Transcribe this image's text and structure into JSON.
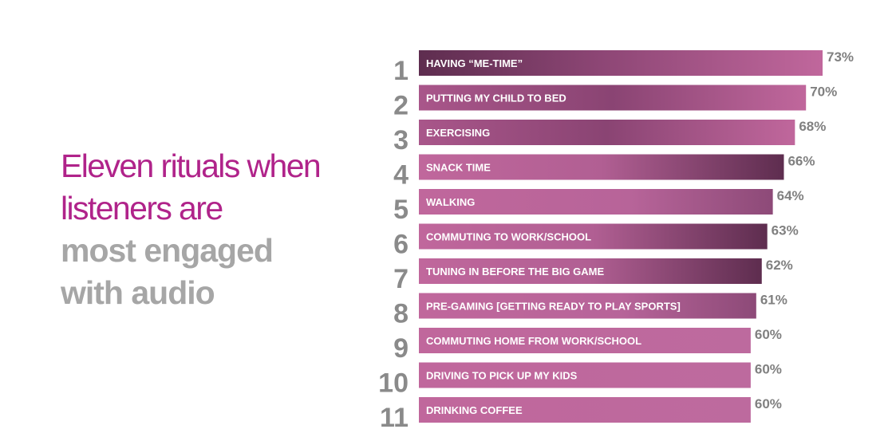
{
  "headline": {
    "line1": "Eleven rituals when",
    "line2": "listeners are",
    "line3": "most engaged",
    "line4": "with audio"
  },
  "colors": {
    "headline_accent": "#b0238a",
    "headline_gray": "#a6a6a6",
    "rank_gray": "#8a8a8a",
    "value_gray": "#808080",
    "bar_light": "#c0679c",
    "bar_dark": "#5e2d4f"
  },
  "chart_data": {
    "type": "bar",
    "orientation": "horizontal",
    "title": "",
    "xlabel": "",
    "ylabel": "",
    "xlim": [
      0,
      73
    ],
    "grid": false,
    "legend": "none",
    "ranks": [
      "1",
      "2",
      "3",
      "4",
      "5",
      "6",
      "7",
      "8",
      "9",
      "10",
      "11"
    ],
    "categories": [
      "HAVING “ME-TIME”",
      "PUTTING MY CHILD TO BED",
      "EXERCISING",
      "SNACK TIME",
      "WALKING",
      "COMMUTING TO WORK/SCHOOL",
      "TUNING IN BEFORE THE BIG GAME",
      "PRE-GAMING [GETTING READY TO PLAY SPORTS]",
      "COMMUTING HOME FROM WORK/SCHOOL",
      "DRIVING TO PICK UP MY KIDS",
      "DRINKING COFFEE"
    ],
    "values": [
      73,
      70,
      68,
      66,
      64,
      63,
      62,
      61,
      60,
      60,
      60
    ],
    "value_labels": [
      "73%",
      "70%",
      "68%",
      "66%",
      "64%",
      "63%",
      "62%",
      "61%",
      "60%",
      "60%",
      "60%"
    ]
  }
}
